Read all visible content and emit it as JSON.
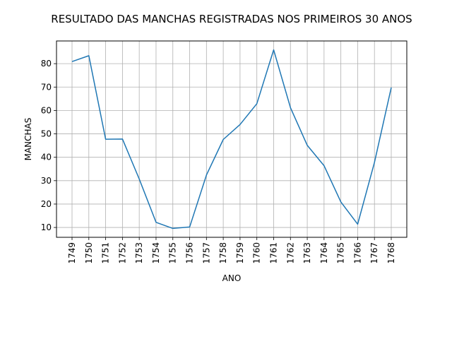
{
  "chart_data": {
    "type": "line",
    "title": "RESULTADO DAS MANCHAS REGISTRADAS NOS PRIMEIROS 30 ANOS",
    "xlabel": "ANO",
    "ylabel": "MANCHAS",
    "categories": [
      "1749",
      "1750",
      "1751",
      "1752",
      "1753",
      "1754",
      "1755",
      "1756",
      "1757",
      "1758",
      "1759",
      "1760",
      "1761",
      "1762",
      "1763",
      "1764",
      "1765",
      "1766",
      "1767",
      "1768"
    ],
    "series": [
      {
        "values": [
          80.9,
          83.4,
          47.7,
          47.8,
          30.7,
          12.2,
          9.6,
          10.2,
          32.4,
          47.6,
          54.0,
          62.9,
          85.9,
          61.2,
          45.1,
          36.4,
          20.9,
          11.4,
          37.8,
          69.8
        ]
      }
    ],
    "yticks": [
      10,
      20,
      30,
      40,
      50,
      60,
      70,
      80
    ],
    "ylim": [
      5.8,
      89.7
    ],
    "grid": true,
    "line_color": "#1f77b4"
  }
}
